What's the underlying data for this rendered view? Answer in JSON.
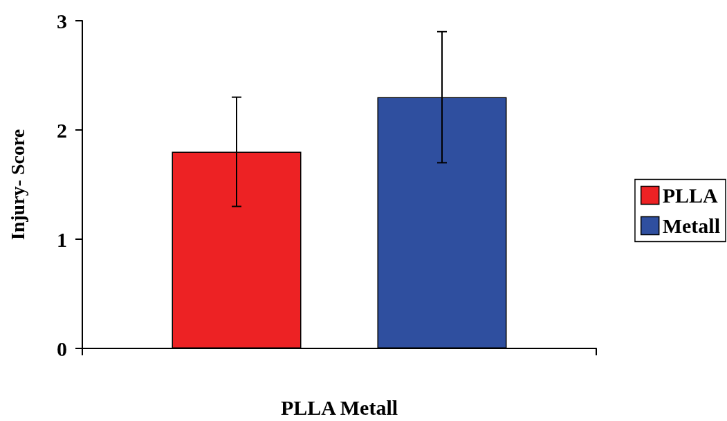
{
  "chart_data": {
    "type": "bar",
    "xlabel": "PLLA Metall",
    "ylabel": "Injury- Score",
    "categories": [
      null
    ],
    "series": [
      {
        "name": "PLLA",
        "color": "#ed2224",
        "values": [
          1.8
        ],
        "errors": [
          0.5
        ]
      },
      {
        "name": "Metall",
        "color": "#2f4f9f",
        "values": [
          2.3
        ],
        "errors": [
          0.6
        ]
      }
    ],
    "ylim": [
      0,
      3
    ],
    "yticks": [
      0,
      1,
      2,
      3
    ],
    "grid": false,
    "legend": "right"
  }
}
